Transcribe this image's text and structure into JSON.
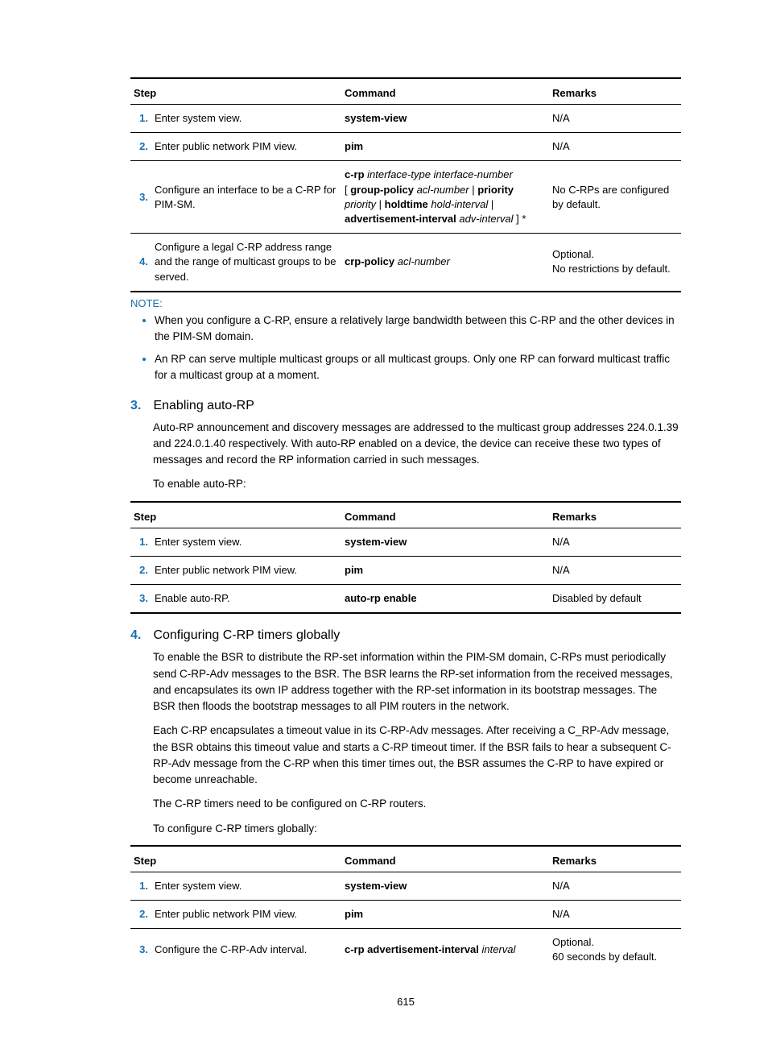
{
  "pageNumber": "615",
  "colors": {
    "accent": "#1a6fb0",
    "text": "#000000",
    "bg": "#ffffff"
  },
  "table1": {
    "headers": {
      "step": "Step",
      "command": "Command",
      "remarks": "Remarks"
    },
    "rows": [
      {
        "n": "1.",
        "step": "Enter system view.",
        "cmd": [
          {
            "t": "system-view",
            "b": true
          }
        ],
        "rem": "N/A"
      },
      {
        "n": "2.",
        "step": "Enter public network PIM view.",
        "cmd": [
          {
            "t": "pim",
            "b": true
          }
        ],
        "rem": "N/A"
      },
      {
        "n": "3.",
        "step": "Configure an interface to be a C-RP for PIM-SM.",
        "cmd": [
          {
            "t": "c-rp ",
            "b": true
          },
          {
            "t": "interface-type interface-number",
            "i": true
          },
          {
            "t": "\n"
          },
          {
            "t": "[ ",
            "b": false
          },
          {
            "t": "group-policy ",
            "b": true
          },
          {
            "t": "acl-number",
            "i": true
          },
          {
            "t": " | "
          },
          {
            "t": "priority",
            "b": true
          },
          {
            "t": "\n"
          },
          {
            "t": "priority",
            "i": true
          },
          {
            "t": " | "
          },
          {
            "t": "holdtime ",
            "b": true
          },
          {
            "t": "hold-interval",
            "i": true
          },
          {
            "t": " |"
          },
          {
            "t": "\n"
          },
          {
            "t": "advertisement-interval ",
            "b": true
          },
          {
            "t": "adv-interval",
            "i": true
          },
          {
            "t": " ] *"
          }
        ],
        "rem": "No C-RPs are configured by default."
      },
      {
        "n": "4.",
        "step": "Configure a legal C-RP address range and the range of multicast groups to be served.",
        "cmd": [
          {
            "t": "crp-policy ",
            "b": true
          },
          {
            "t": "acl-number",
            "i": true
          }
        ],
        "rem": "Optional.\nNo restrictions by default."
      }
    ]
  },
  "note": {
    "label": "NOTE:",
    "items": [
      "When you configure a C-RP, ensure a relatively large bandwidth between this C-RP and the other devices in the PIM-SM domain.",
      "An RP can serve multiple multicast groups or all multicast groups. Only one RP can forward multicast traffic for a multicast group at a moment."
    ]
  },
  "sec3": {
    "num": "3.",
    "title": "Enabling auto-RP",
    "p1": "Auto-RP announcement and discovery messages are addressed to the multicast group addresses 224.0.1.39 and 224.0.1.40 respectively. With auto-RP enabled on a device, the device can receive these two types of messages and record the RP information carried in such messages.",
    "p2": "To enable auto-RP:"
  },
  "table2": {
    "headers": {
      "step": "Step",
      "command": "Command",
      "remarks": "Remarks"
    },
    "rows": [
      {
        "n": "1.",
        "step": "Enter system view.",
        "cmd": [
          {
            "t": "system-view",
            "b": true
          }
        ],
        "rem": "N/A"
      },
      {
        "n": "2.",
        "step": "Enter public network PIM view.",
        "cmd": [
          {
            "t": "pim",
            "b": true
          }
        ],
        "rem": "N/A"
      },
      {
        "n": "3.",
        "step": "Enable auto-RP.",
        "cmd": [
          {
            "t": "auto-rp enable",
            "b": true
          }
        ],
        "rem": "Disabled by default"
      }
    ]
  },
  "sec4": {
    "num": "4.",
    "title": "Configuring C-RP timers globally",
    "p1": "To enable the BSR to distribute the RP-set information within the PIM-SM domain, C-RPs must periodically send C-RP-Adv messages to the BSR. The BSR learns the RP-set information from the received messages, and encapsulates its own IP address together with the RP-set information in its bootstrap messages. The BSR then floods the bootstrap messages to all PIM routers in the network.",
    "p2": "Each C-RP encapsulates a timeout value in its C-RP-Adv messages. After receiving a C_RP-Adv message, the BSR obtains this timeout value and starts a C-RP timeout timer. If the BSR fails to hear a subsequent C-RP-Adv message from the C-RP when this timer times out, the BSR assumes the C-RP to have expired or become unreachable.",
    "p3": "The C-RP timers need to be configured on C-RP routers.",
    "p4": "To configure C-RP timers globally:"
  },
  "table3": {
    "headers": {
      "step": "Step",
      "command": "Command",
      "remarks": "Remarks"
    },
    "rows": [
      {
        "n": "1.",
        "step": "Enter system view.",
        "cmd": [
          {
            "t": "system-view",
            "b": true
          }
        ],
        "rem": "N/A"
      },
      {
        "n": "2.",
        "step": "Enter public network PIM view.",
        "cmd": [
          {
            "t": "pim",
            "b": true
          }
        ],
        "rem": "N/A"
      },
      {
        "n": "3.",
        "step": "Configure the C-RP-Adv interval.",
        "cmd": [
          {
            "t": "c-rp advertisement-interval ",
            "b": true
          },
          {
            "t": "interval",
            "i": true
          }
        ],
        "rem": "Optional.\n60 seconds by default."
      }
    ]
  }
}
